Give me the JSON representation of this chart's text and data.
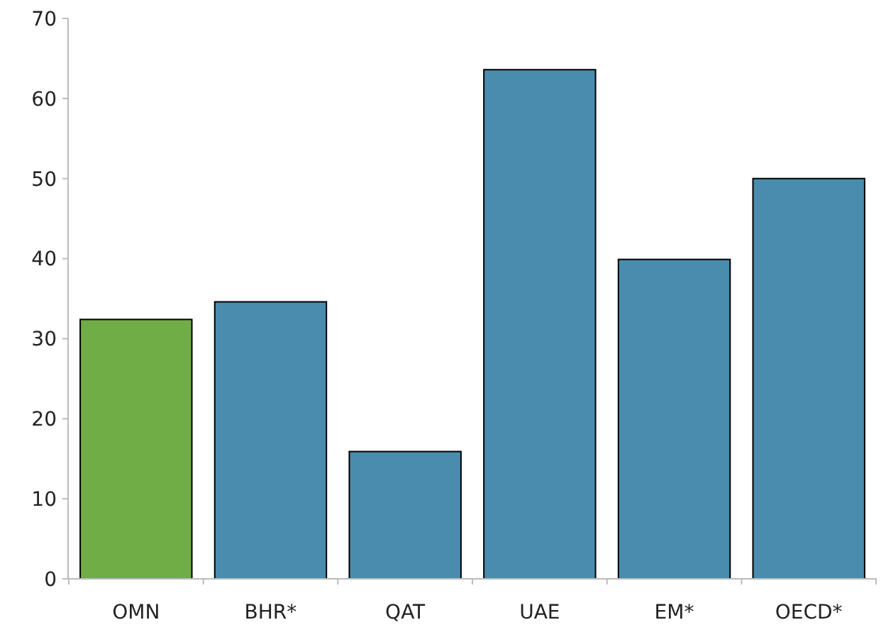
{
  "chart_data": {
    "type": "bar",
    "categories": [
      "OMN",
      "BHR*",
      "QAT",
      "UAE",
      "EM*",
      "OECD*"
    ],
    "values": [
      32.4,
      34.6,
      15.9,
      63.6,
      39.9,
      50.0
    ],
    "colors": [
      "#70ad47",
      "#4a8cad",
      "#4a8cad",
      "#4a8cad",
      "#4a8cad",
      "#4a8cad"
    ],
    "ylim": [
      0,
      70
    ],
    "yticks": [
      0,
      10,
      20,
      30,
      40,
      50,
      60,
      70
    ]
  }
}
